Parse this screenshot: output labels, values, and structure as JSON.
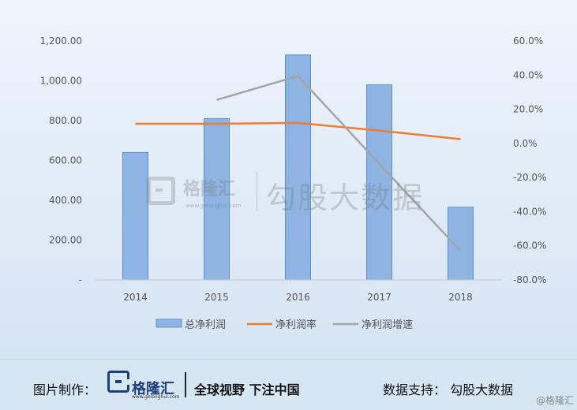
{
  "chart_data": {
    "type": "bar",
    "categories": [
      "2014",
      "2015",
      "2016",
      "2017",
      "2018"
    ],
    "y_left": {
      "ticks": [
        "-",
        "200.00",
        "400.00",
        "600.00",
        "800.00",
        "1,000.00",
        "1,200.00"
      ],
      "ylim": [
        0,
        1200
      ]
    },
    "y_right": {
      "ticks": [
        "-80.0%",
        "-60.0%",
        "-40.0%",
        "-20.0%",
        "0.0%",
        "20.0%",
        "40.0%",
        "60.0%"
      ],
      "ylim": [
        -80,
        60
      ]
    },
    "series": [
      {
        "name": "总净利润",
        "type": "bar",
        "axis": "left",
        "color": "#8db4e2",
        "values": [
          640,
          810,
          1130,
          980,
          365
        ]
      },
      {
        "name": "净利润率",
        "type": "line",
        "axis": "right",
        "color": "#ed7d31",
        "values": [
          11.5,
          11.5,
          12,
          7.5,
          2.5
        ]
      },
      {
        "name": "净利润增速",
        "type": "line",
        "axis": "right",
        "color": "#a5a5a5",
        "values": [
          null,
          25.5,
          39.5,
          -12,
          -63
        ]
      }
    ],
    "legend_position": "bottom",
    "grid": false
  },
  "watermark": {
    "brand": "格隆汇",
    "url": "www.gelonghui.com",
    "main": "勾股大数据"
  },
  "footer": {
    "made_by_label": "图片制作：",
    "logo_text": "格隆汇",
    "logo_url": "www.gelonghui.com",
    "slogan": "全球视野 下注中国",
    "data_support": "数据支持：  勾股大数据"
  },
  "corner_mark": "@格隆汇"
}
